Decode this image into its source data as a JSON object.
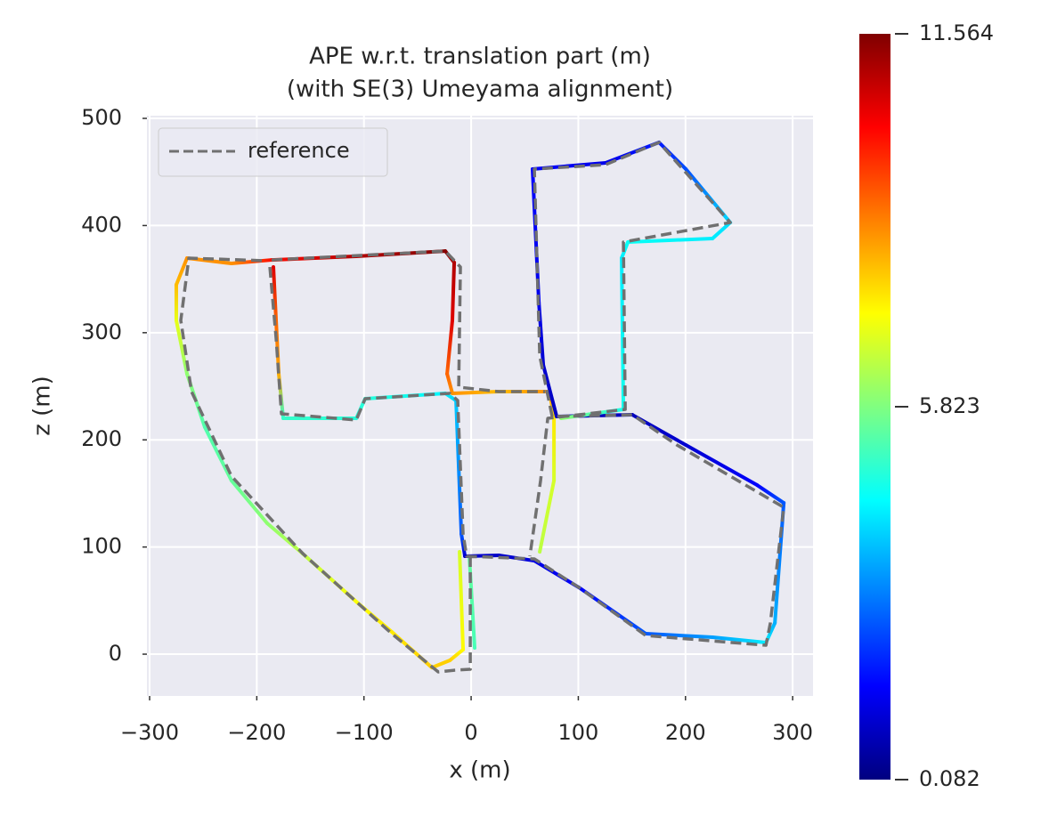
{
  "chart_data": {
    "type": "line",
    "title": [
      "APE w.r.t. translation part (m)",
      "(with SE(3) Umeyama alignment)"
    ],
    "x_label": "x (m)",
    "y_label": "z (m)",
    "xlim": [
      -302.5,
      319
    ],
    "ylim": [
      -39,
      502.5
    ],
    "xticks": [
      {
        "value": -300,
        "label": "−300"
      },
      {
        "value": -200,
        "label": "−200"
      },
      {
        "value": -100,
        "label": "−100"
      },
      0,
      100,
      200,
      300
    ],
    "yticks": [
      0,
      100,
      200,
      300,
      400,
      500
    ],
    "grid": true,
    "legend": "upper left",
    "colormap": "jet",
    "colorbar": {
      "lim": [
        0.082,
        11.564
      ],
      "ticks": [
        0.082,
        5.823,
        11.564
      ]
    },
    "series": [
      {
        "name": "reference",
        "color": "#707070",
        "style": "dashed",
        "x": [
          -0.8,
          -0.8,
          -15.8,
          -30.7,
          -74.0,
          -157.1,
          -223.6,
          -260.9,
          -270.9,
          -263.4,
          -190.3,
          null,
          -187.8,
          -182.0,
          -177.0,
          -107.2,
          -98.9,
          -19.9,
          -12.5,
          -7.5,
          -4.2,
          59.0,
          100.5,
          162.9,
          275.1,
          279.2,
          291.7,
          192.0,
          150.4,
          75.6,
          64.0,
          59.0,
          125.5,
          175.3,
          241.8,
          142.1,
          143.8,
          71.5,
          64.8,
          54.8,
          null,
          -186.1,
          -24.1,
          -10.0,
          -11.6,
          25.8,
          69.0
        ],
        "y": [
          91.4,
          -14.1,
          -15.0,
          -16.6,
          19.1,
          93.9,
          166.1,
          245.0,
          311.5,
          369.6,
          367.1,
          null,
          361.3,
          294.9,
          224.3,
          218.5,
          238.4,
          243.4,
          236.7,
          112.1,
          91.4,
          88.9,
          62.3,
          17.4,
          8.3,
          29.1,
          137.0,
          195.2,
          223.4,
          221.8,
          278.3,
          452.7,
          456.8,
          477.6,
          402.8,
          384.6,
          228.4,
          220.1,
          162.0,
          91.4,
          null,
          367.9,
          376.2,
          361.3,
          249.2,
          245.0,
          245.0
        ]
      },
      {
        "x": [
          3.3,
          -1.7,
          null,
          -10.8,
          -7.5,
          -19.9,
          -36.6,
          -74.0,
          -107.2,
          -157.1,
          -190.3,
          -223.6,
          -248.5,
          -265.1,
          -275.1,
          -275.1,
          -265.1,
          -223.6,
          -186.1,
          -107.2,
          -24.1,
          -15.8,
          -17.5,
          -22.4,
          -17.5,
          25.8,
          73.1,
          77.3,
          77.3,
          64.0,
          null,
          -184.5,
          -182.0,
          -179.5,
          -175.3,
          -107.2,
          -98.9,
          -24.1,
          -14.1,
          -9.1,
          -5.8,
          25.8,
          59.0,
          100.5,
          162.9,
          225.2,
          275.1,
          283.4,
          291.7,
          266.8,
          200.3,
          150.4,
          79.8,
          67.3,
          63.2,
          57.3,
          125.5,
          175.3,
          200.3,
          241.8,
          225.2,
          146.3,
          140.4,
          142.1,
          83.9
        ],
        "y": [
          5.8,
          91.4,
          null,
          95.5,
          4.2,
          -5.8,
          -12.5,
          20.8,
          49.0,
          93.8,
          122.1,
          162.0,
          211.8,
          261.6,
          311.5,
          344.7,
          369.6,
          364.6,
          367.9,
          371.3,
          376.2,
          365.5,
          311.5,
          261.6,
          243.4,
          245.0,
          245.0,
          220.1,
          162.0,
          95.5,
          null,
          361.3,
          311.5,
          261.6,
          220.1,
          220.1,
          238.4,
          243.4,
          236.7,
          112.1,
          91.4,
          92.2,
          87.2,
          62.3,
          19.1,
          15.8,
          10.8,
          29.1,
          141.2,
          157.8,
          195.2,
          223.4,
          221.8,
          269.9,
          328.1,
          452.7,
          458.5,
          477.6,
          452.7,
          402.8,
          387.9,
          384.6,
          369.6,
          228.4,
          220.1
        ],
        "error": [
          5.2,
          5.5,
          null,
          6.8,
          7.3,
          7.8,
          7.8,
          7.5,
          7.2,
          6.5,
          6.0,
          5.5,
          5.3,
          6.0,
          7.0,
          8.0,
          8.5,
          8.5,
          10,
          11,
          11.5,
          11,
          10.5,
          9,
          8.5,
          8,
          8.5,
          7.5,
          6.8,
          6.5,
          null,
          10.5,
          9,
          8.2,
          5,
          4.8,
          4.8,
          4.3,
          3.8,
          2.5,
          1,
          0.9,
          1.2,
          1.5,
          2.5,
          3.3,
          4.2,
          3.5,
          2.5,
          1.5,
          1,
          0.8,
          0.8,
          1.0,
          1.3,
          1.5,
          1.3,
          1.8,
          2.4,
          4,
          4.2,
          4.5,
          4.2,
          4.6,
          6
        ]
      }
    ]
  }
}
